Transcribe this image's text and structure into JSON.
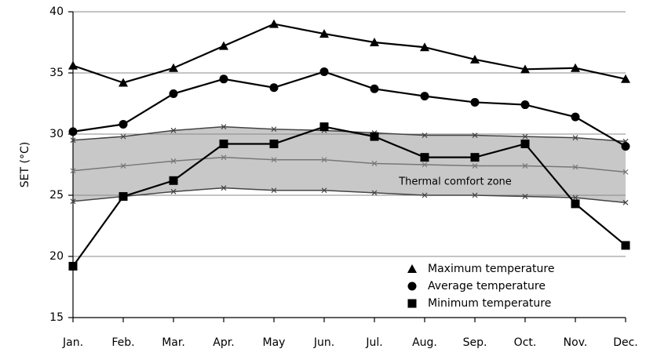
{
  "chart_data": {
    "type": "line",
    "ylabel": "SET (°C)",
    "categories": [
      "Jan.",
      "Feb.",
      "Mar.",
      "Apr.",
      "May",
      "Jun.",
      "Jul.",
      "Aug.",
      "Sep.",
      "Oct.",
      "Nov.",
      "Dec."
    ],
    "series": [
      {
        "name": "Maximum temperature",
        "color": "#000000",
        "marker": "triangle",
        "values": [
          35.6,
          34.2,
          35.4,
          37.2,
          39.0,
          38.2,
          37.5,
          37.1,
          36.1,
          35.3,
          35.4,
          34.5
        ]
      },
      {
        "name": "Average temperature",
        "color": "#000000",
        "marker": "circle",
        "values": [
          30.2,
          30.8,
          33.3,
          34.5,
          33.8,
          35.1,
          33.7,
          33.1,
          32.6,
          32.4,
          31.4,
          29.0
        ]
      },
      {
        "name": "Minimum temperature",
        "color": "#000000",
        "marker": "square",
        "values": [
          19.2,
          24.9,
          26.2,
          29.2,
          29.2,
          30.6,
          29.8,
          28.1,
          28.1,
          29.2,
          24.3,
          20.9
        ]
      }
    ],
    "comfort_zone": {
      "label": "Thermal comfort zone",
      "fill": "#c8c8c8",
      "color": "#444444",
      "mean_color": "#777777",
      "upper": [
        29.5,
        29.8,
        30.3,
        30.6,
        30.4,
        30.3,
        30.1,
        29.9,
        29.9,
        29.8,
        29.7,
        29.4
      ],
      "mean": [
        27.0,
        27.4,
        27.8,
        28.1,
        27.9,
        27.9,
        27.6,
        27.5,
        27.4,
        27.4,
        27.3,
        26.9
      ],
      "lower": [
        24.5,
        24.9,
        25.3,
        25.6,
        25.4,
        25.4,
        25.2,
        25.0,
        25.0,
        24.9,
        24.8,
        24.4
      ]
    },
    "ylim": [
      15,
      40
    ],
    "yticks": [
      15,
      20,
      25,
      30,
      35,
      40
    ],
    "grid": true,
    "legend": "lower right"
  }
}
